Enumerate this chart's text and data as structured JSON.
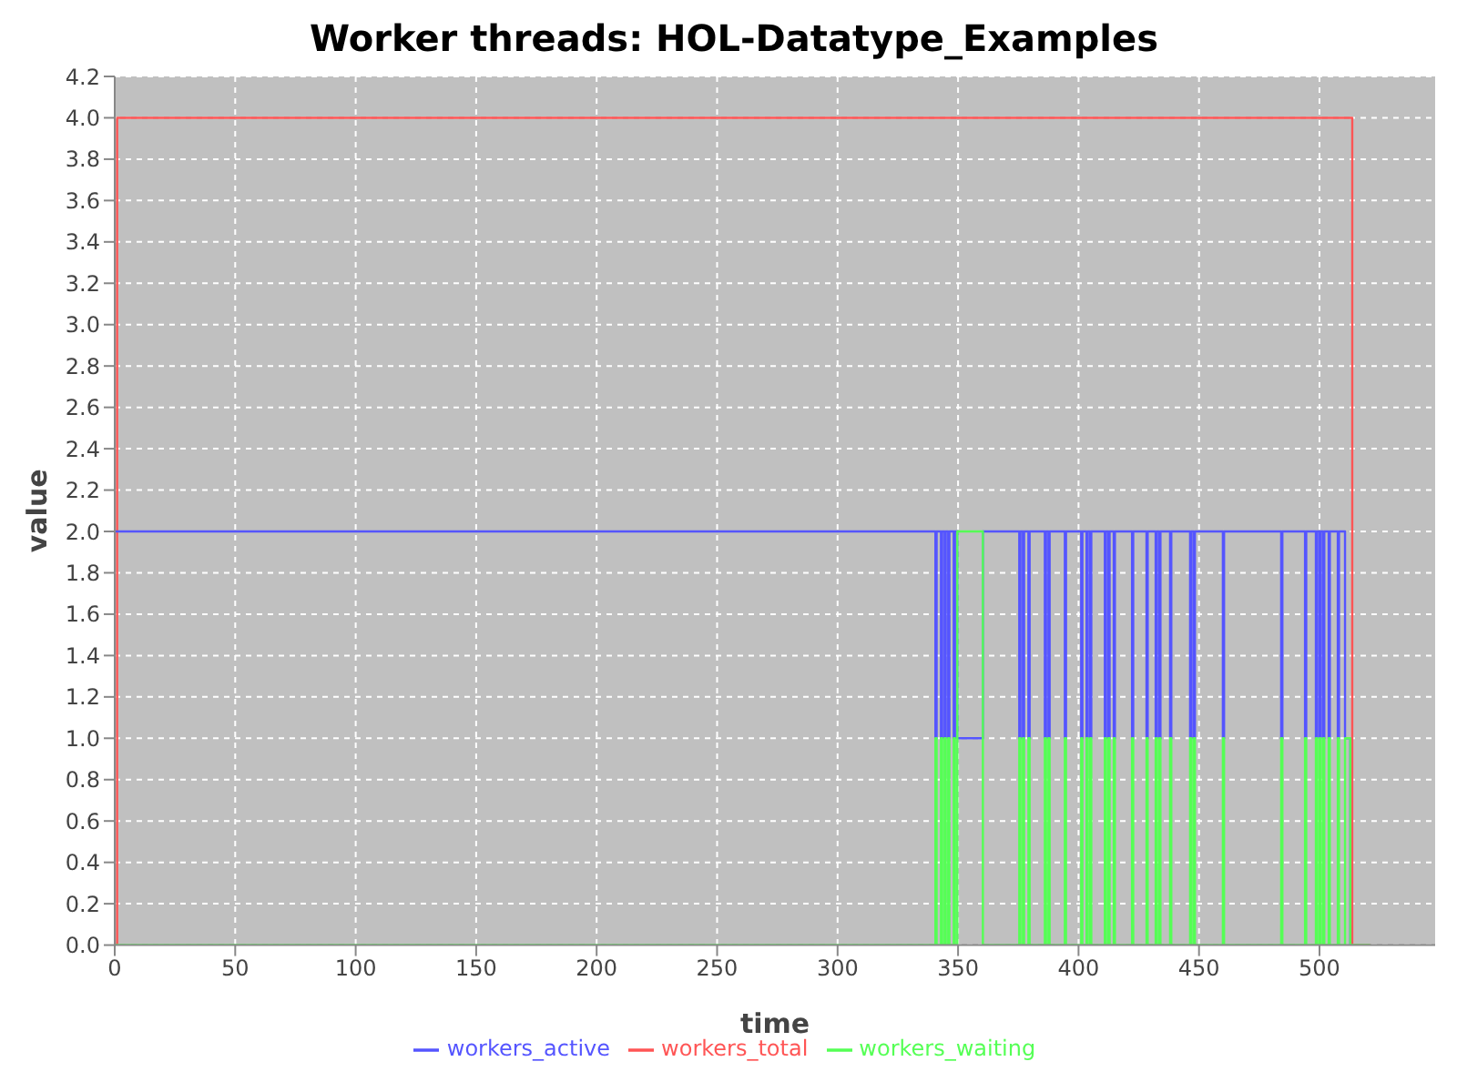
{
  "chart_data": {
    "type": "step",
    "title": "Worker threads: HOL-Datatype_Examples",
    "xlabel": "time",
    "ylabel": "value",
    "xlim": [
      0,
      548
    ],
    "xticks": [
      0,
      50,
      100,
      150,
      200,
      250,
      300,
      350,
      400,
      450,
      500
    ],
    "ylim": [
      0,
      4.2
    ],
    "yticks": [
      {
        "value": 0,
        "label": "0.0"
      },
      0.2,
      0.4,
      0.6,
      0.8,
      {
        "value": 1,
        "label": "1.0"
      },
      1.2,
      1.4,
      1.6,
      1.8,
      {
        "value": 2,
        "label": "2.0"
      },
      2.2,
      2.4,
      2.6,
      2.8,
      {
        "value": 3,
        "label": "3.0"
      },
      3.2,
      3.4,
      3.6,
      3.8,
      {
        "value": 4,
        "label": "4.0"
      },
      4.2
    ],
    "grid": true,
    "legend": "bottom",
    "series": [
      {
        "name": "workers_total",
        "color": "#ff5555",
        "x": [
          0,
          1,
          513.6,
          521
        ],
        "values": [
          0,
          4,
          0,
          0
        ]
      },
      {
        "name": "workers_active",
        "color": "#5555ff",
        "x": [
          0,
          340.6,
          341.1,
          342.9,
          343.4,
          344.4,
          344.9,
          345.9,
          346.4,
          348.2,
          348.7,
          349.7,
          360.3,
          375.4,
          375.9,
          376.9,
          377.4,
          379.2,
          379.7,
          386,
          386.5,
          387.5,
          388,
          394.3,
          394.8,
          401.1,
          401.6,
          403.3,
          403.8,
          404.8,
          405.3,
          410.9,
          411.4,
          412.4,
          412.9,
          414.6,
          415.1,
          422.2,
          422.7,
          428.2,
          428.7,
          432,
          432.5,
          433.5,
          434,
          438,
          438.5,
          446.3,
          446.8,
          447.8,
          448.3,
          459.9,
          460.4,
          484.1,
          484.6,
          494,
          494.5,
          498.5,
          499,
          500,
          500.5,
          501.5,
          502,
          503.8,
          504.3,
          507.6,
          508.1,
          510.6,
          512.8
        ],
        "values": [
          2,
          1,
          2,
          1,
          2,
          1,
          2,
          1,
          2,
          1,
          2,
          1,
          2,
          1,
          2,
          1,
          2,
          1,
          2,
          1,
          2,
          1,
          2,
          1,
          2,
          1,
          2,
          1,
          2,
          1,
          2,
          1,
          2,
          1,
          2,
          1,
          2,
          1,
          2,
          1,
          2,
          1,
          2,
          1,
          2,
          1,
          2,
          1,
          2,
          1,
          2,
          1,
          2,
          1,
          2,
          1,
          2,
          1,
          2,
          1,
          2,
          1,
          2,
          1,
          2,
          1,
          2,
          1,
          0
        ]
      },
      {
        "name": "workers_waiting",
        "color": "#55ff55",
        "x": [
          0,
          340.6,
          341.1,
          342.9,
          343.4,
          344.4,
          344.9,
          345.9,
          346.4,
          348.2,
          348.7,
          349.7,
          360.3,
          375.4,
          375.9,
          376.9,
          377.4,
          379.2,
          379.7,
          386,
          386.5,
          387.5,
          388,
          394.3,
          394.8,
          401.1,
          401.6,
          403.3,
          403.8,
          404.8,
          405.3,
          410.9,
          411.4,
          412.4,
          412.9,
          414.6,
          415.1,
          422.2,
          422.7,
          428.2,
          428.7,
          432,
          432.5,
          433.5,
          434,
          438,
          438.5,
          446.3,
          446.8,
          447.8,
          448.3,
          459.9,
          460.4,
          484.1,
          484.6,
          494,
          494.5,
          498.5,
          499,
          500,
          500.5,
          501.5,
          502,
          503.8,
          504.3,
          507.6,
          508.1,
          510.6,
          512.8,
          521
        ],
        "values": [
          0,
          1,
          0,
          1,
          0,
          1,
          0,
          1,
          0,
          1,
          0,
          2,
          0,
          1,
          0,
          1,
          0,
          1,
          0,
          1,
          0,
          1,
          0,
          1,
          0,
          1,
          0,
          1,
          0,
          1,
          0,
          1,
          0,
          1,
          0,
          1,
          0,
          1,
          0,
          1,
          0,
          1,
          0,
          1,
          0,
          1,
          0,
          1,
          0,
          1,
          0,
          1,
          0,
          1,
          0,
          1,
          0,
          1,
          0,
          1,
          0,
          1,
          0,
          1,
          0,
          1,
          0,
          1,
          0,
          0
        ]
      }
    ]
  }
}
